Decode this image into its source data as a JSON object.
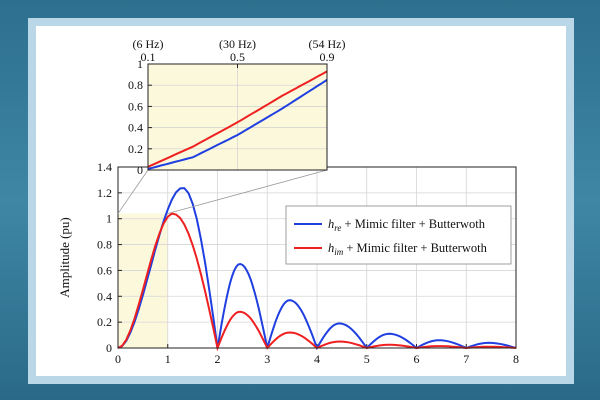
{
  "chart_data": [
    {
      "id": "main",
      "type": "line",
      "xlabel": "",
      "ylabel": "Amplitude (pu)",
      "xlim": [
        0,
        8
      ],
      "ylim": [
        0,
        1.4
      ],
      "x_ticks": [
        0,
        1,
        2,
        3,
        4,
        5,
        6,
        7,
        8
      ],
      "y_ticks": [
        0,
        0.2,
        0.4,
        0.6,
        0.8,
        1,
        1.2,
        1.4
      ],
      "grid": true,
      "legend_position": "right",
      "highlight_region_x": [
        0,
        1
      ],
      "highlight_color": "#fbf8dc",
      "series": [
        {
          "name_main": "h",
          "name_sub": "re",
          "name_suffix": " + Mimic filter + Butterwoth",
          "color": "#1f3fe0",
          "peaks": [
            {
              "x": 1.3,
              "y": 1.24
            },
            {
              "x": 2.45,
              "y": 0.65
            },
            {
              "x": 3.45,
              "y": 0.37
            },
            {
              "x": 4.45,
              "y": 0.19
            },
            {
              "x": 5.45,
              "y": 0.11
            },
            {
              "x": 6.45,
              "y": 0.06
            },
            {
              "x": 7.45,
              "y": 0.04
            }
          ],
          "zeros": [
            0,
            2,
            3,
            4,
            5,
            6,
            7,
            8
          ]
        },
        {
          "name_main": "h",
          "name_sub": "im",
          "name_suffix": " + Mimic filter + Butterwoth",
          "color": "#ee2020",
          "peaks": [
            {
              "x": 1.1,
              "y": 1.04
            },
            {
              "x": 2.45,
              "y": 0.28
            },
            {
              "x": 3.45,
              "y": 0.12
            },
            {
              "x": 4.45,
              "y": 0.05
            },
            {
              "x": 5.45,
              "y": 0.025
            },
            {
              "x": 6.45,
              "y": 0.015
            },
            {
              "x": 7.45,
              "y": 0.01
            }
          ],
          "zeros": [
            0,
            2,
            3,
            4,
            5,
            6,
            7,
            8
          ]
        }
      ]
    },
    {
      "id": "inset",
      "type": "line",
      "xlim": [
        0.1,
        0.9
      ],
      "ylim": [
        0,
        1
      ],
      "x_ticks_top": [
        0.1,
        0.5,
        0.9
      ],
      "x_tick_labels_top": [
        "0.1",
        "0.5",
        "0.9"
      ],
      "x_freq_labels": [
        "(6 Hz)",
        "(30 Hz)",
        "(54 Hz)"
      ],
      "y_ticks": [
        0,
        0.2,
        0.4,
        0.6,
        0.8,
        1
      ],
      "y_tick_labels": [
        "0",
        "0.2",
        "0.4",
        "0.6",
        "0.8",
        "1"
      ],
      "background": "#fbf8dc",
      "series": [
        {
          "name": "",
          "color": "#ee2020",
          "x": [
            0.1,
            0.3,
            0.5,
            0.7,
            0.9
          ],
          "y": [
            0.03,
            0.22,
            0.45,
            0.7,
            0.93
          ]
        },
        {
          "name": "",
          "color": "#1f3fe0",
          "x": [
            0.1,
            0.3,
            0.5,
            0.7,
            0.9
          ],
          "y": [
            0.01,
            0.12,
            0.33,
            0.58,
            0.85
          ]
        }
      ]
    }
  ]
}
